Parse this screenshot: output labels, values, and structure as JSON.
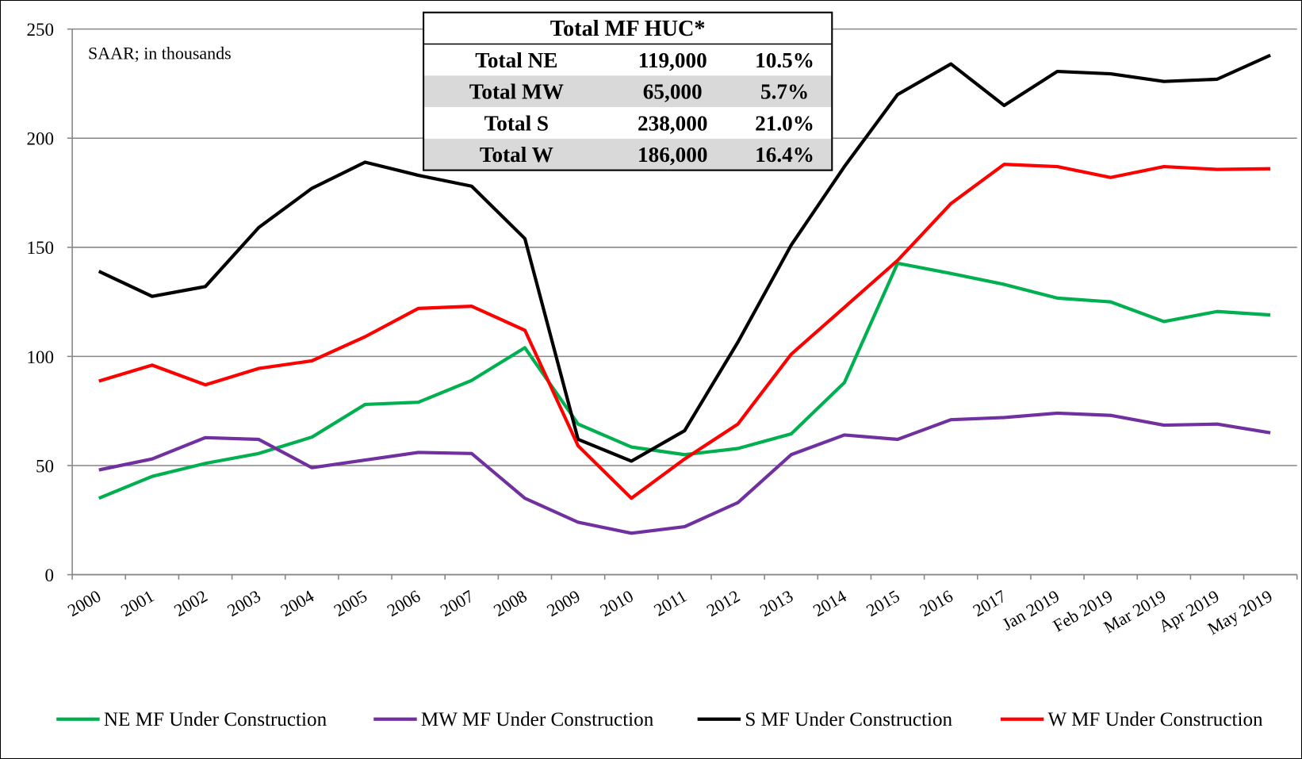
{
  "chart_data": {
    "type": "line",
    "annotation": "SAAR; in thousands",
    "categories": [
      "2000",
      "2001",
      "2002",
      "2003",
      "2004",
      "2005",
      "2006",
      "2007",
      "2008",
      "2009",
      "2010",
      "2011",
      "2012",
      "2013",
      "2014",
      "2015",
      "2016",
      "2017",
      "Jan 2019",
      "Feb 2019",
      "Mar 2019",
      "Apr 2019",
      "May 2019"
    ],
    "series": [
      {
        "name": "NE MF Under Construction",
        "color": "#00b050",
        "values": [
          35,
          45,
          51,
          55.5,
          63,
          78,
          79,
          89,
          104,
          69,
          58.5,
          55,
          57.8,
          64.5,
          88,
          142.7,
          138,
          133,
          126.7,
          125,
          116,
          120.6,
          119
        ]
      },
      {
        "name": "MW MF Under Construction",
        "color": "#7030a0",
        "values": [
          48,
          53,
          62.8,
          62,
          49,
          52.5,
          56,
          55.5,
          35,
          24,
          19,
          22,
          33,
          55,
          64,
          62,
          71,
          72,
          74,
          73,
          68.5,
          69,
          65
        ]
      },
      {
        "name": "S MF Under Construction",
        "color": "#000000",
        "values": [
          139,
          127.5,
          132,
          159,
          177,
          189,
          183,
          178,
          154,
          62,
          52,
          66,
          106.5,
          151,
          187,
          220,
          234,
          215,
          230.6,
          229.5,
          226,
          227,
          238
        ]
      },
      {
        "name": "W MF Under Construction",
        "color": "#ff0000",
        "values": [
          88.7,
          96,
          87,
          94.5,
          98,
          109,
          122,
          123,
          112,
          59,
          35,
          53,
          69,
          101,
          122.5,
          144,
          170,
          188,
          187,
          182,
          187,
          185.7,
          186
        ]
      }
    ],
    "ylim": [
      0,
      250
    ],
    "yticks": [
      0,
      50,
      100,
      150,
      200,
      250
    ],
    "grid": true,
    "legend": "bottom",
    "table": {
      "title": "Total MF HUC*",
      "rows": [
        [
          "Total NE",
          "119,000",
          "10.5%"
        ],
        [
          "Total MW",
          "65,000",
          "5.7%"
        ],
        [
          "Total S",
          "238,000",
          "21.0%"
        ],
        [
          "Total W",
          "186,000",
          "16.4%"
        ]
      ]
    }
  }
}
